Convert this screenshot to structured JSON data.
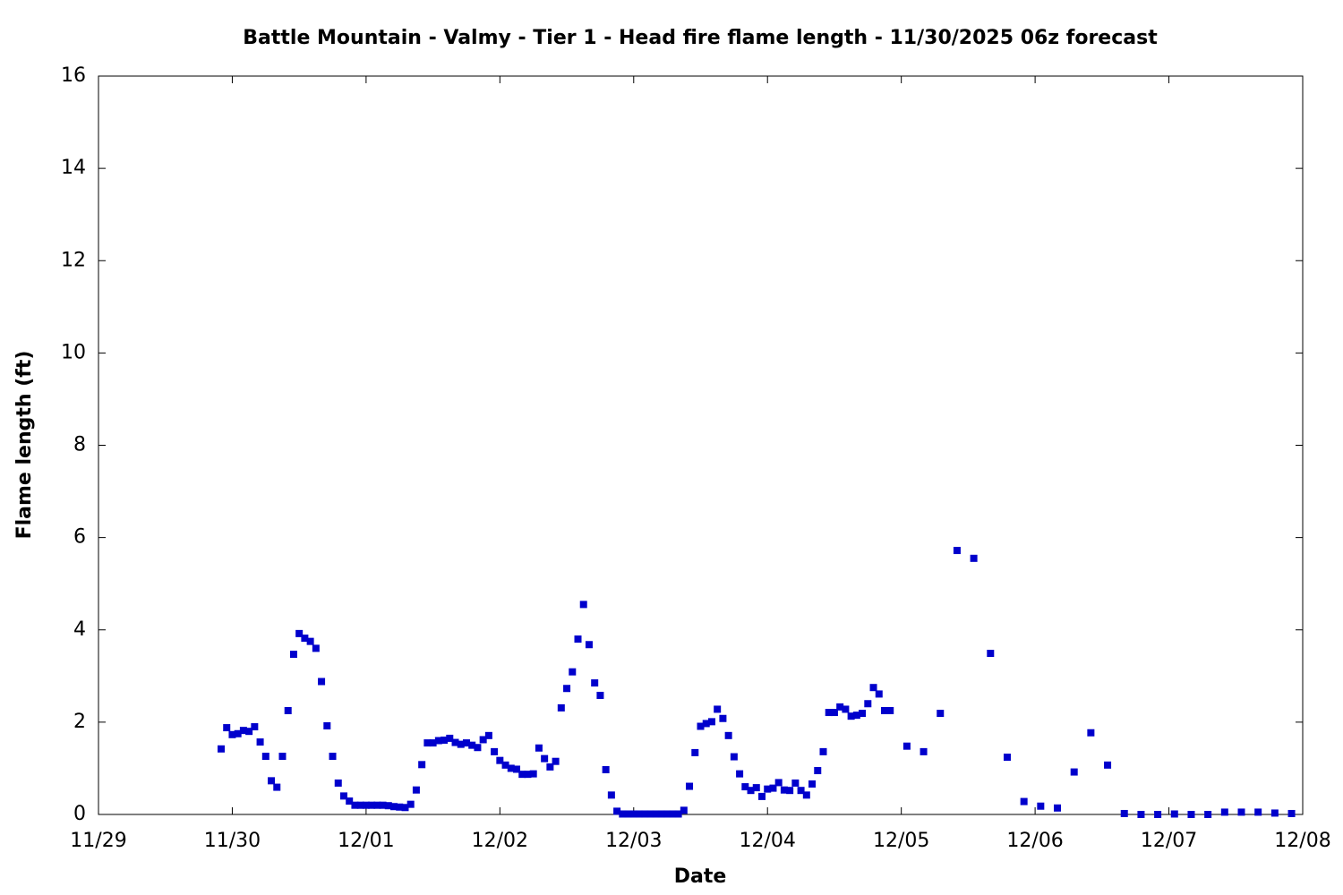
{
  "chart_data": {
    "type": "scatter",
    "title": "Battle Mountain - Valmy - Tier 1 - Head fire flame length - 11/30/2025 06z forecast",
    "x_label": "Date",
    "y_label": "Flame length (ft)",
    "xlim": [
      0,
      216
    ],
    "xticks": [
      {
        "value": 0,
        "label": "11/29"
      },
      {
        "value": 24,
        "label": "11/30"
      },
      {
        "value": 48,
        "label": "12/01"
      },
      {
        "value": 72,
        "label": "12/02"
      },
      {
        "value": 96,
        "label": "12/03"
      },
      {
        "value": 120,
        "label": "12/04"
      },
      {
        "value": 144,
        "label": "12/05"
      },
      {
        "value": 168,
        "label": "12/06"
      },
      {
        "value": 192,
        "label": "12/07"
      },
      {
        "value": 216,
        "label": "12/08"
      }
    ],
    "ylim": [
      0,
      16
    ],
    "yticks": [
      0,
      2,
      4,
      6,
      8,
      10,
      12,
      14,
      16
    ],
    "color": "#0000cc",
    "x": [
      22,
      23,
      24,
      25,
      26,
      27,
      28,
      29,
      30,
      31,
      32,
      33,
      34,
      35,
      36,
      37,
      38,
      39,
      40,
      41,
      42,
      43,
      44,
      45,
      46,
      47,
      48,
      49,
      50,
      51,
      52,
      53,
      54,
      55,
      56,
      57,
      58,
      59,
      60,
      61,
      62,
      63,
      64,
      65,
      66,
      67,
      68,
      69,
      70,
      71,
      72,
      73,
      74,
      75,
      76,
      77,
      78,
      79,
      80,
      81,
      82,
      83,
      84,
      85,
      86,
      87,
      88,
      89,
      90,
      91,
      92,
      93,
      94,
      95,
      96,
      97,
      98,
      99,
      100,
      101,
      102,
      103,
      104,
      105,
      106,
      107,
      108,
      109,
      110,
      111,
      112,
      113,
      114,
      115,
      116,
      117,
      118,
      119,
      120,
      121,
      122,
      123,
      124,
      125,
      126,
      127,
      128,
      129,
      130,
      131,
      132,
      133,
      134,
      135,
      136,
      137,
      138,
      139,
      140,
      141,
      142,
      145,
      148,
      151,
      154,
      157,
      160,
      163,
      166,
      169,
      172,
      175,
      178,
      181,
      184,
      187,
      190,
      193,
      196,
      199,
      202,
      205,
      208,
      211,
      214
    ],
    "values": [
      1.42,
      1.88,
      1.73,
      1.75,
      1.82,
      1.8,
      1.9,
      1.57,
      1.26,
      0.73,
      0.59,
      1.26,
      2.25,
      3.47,
      3.92,
      3.82,
      3.75,
      3.6,
      2.88,
      1.92,
      1.26,
      0.68,
      0.4,
      0.29,
      0.2,
      0.2,
      0.2,
      0.2,
      0.2,
      0.2,
      0.19,
      0.17,
      0.16,
      0.15,
      0.22,
      0.53,
      1.08,
      1.55,
      1.55,
      1.6,
      1.61,
      1.65,
      1.56,
      1.52,
      1.55,
      1.5,
      1.45,
      1.62,
      1.71,
      1.36,
      1.17,
      1.07,
      1.0,
      0.98,
      0.87,
      0.87,
      0.88,
      1.44,
      1.21,
      1.03,
      1.15,
      2.31,
      2.73,
      3.09,
      3.8,
      4.55,
      3.68,
      2.85,
      2.58,
      0.97,
      0.42,
      0.07,
      0.01,
      0.01,
      0.01,
      0.01,
      0.01,
      0.01,
      0.01,
      0.01,
      0.01,
      0.01,
      0.01,
      0.09,
      0.61,
      1.34,
      1.91,
      1.97,
      2.01,
      2.28,
      2.08,
      1.71,
      1.25,
      0.88,
      0.6,
      0.52,
      0.58,
      0.39,
      0.55,
      0.57,
      0.69,
      0.53,
      0.52,
      0.68,
      0.52,
      0.42,
      0.66,
      0.95,
      1.36,
      2.21,
      2.21,
      2.33,
      2.28,
      2.13,
      2.15,
      2.19,
      2.4,
      2.75,
      2.61,
      2.25,
      2.25,
      1.48,
      1.36,
      2.19,
      5.72,
      5.55,
      3.49,
      1.24,
      0.28,
      0.18,
      0.14,
      0.92,
      1.77,
      1.07,
      0.02,
      0.0,
      0.0,
      0.01,
      0.0,
      0.0,
      0.05,
      0.05,
      0.05,
      0.03,
      0.02
    ]
  }
}
